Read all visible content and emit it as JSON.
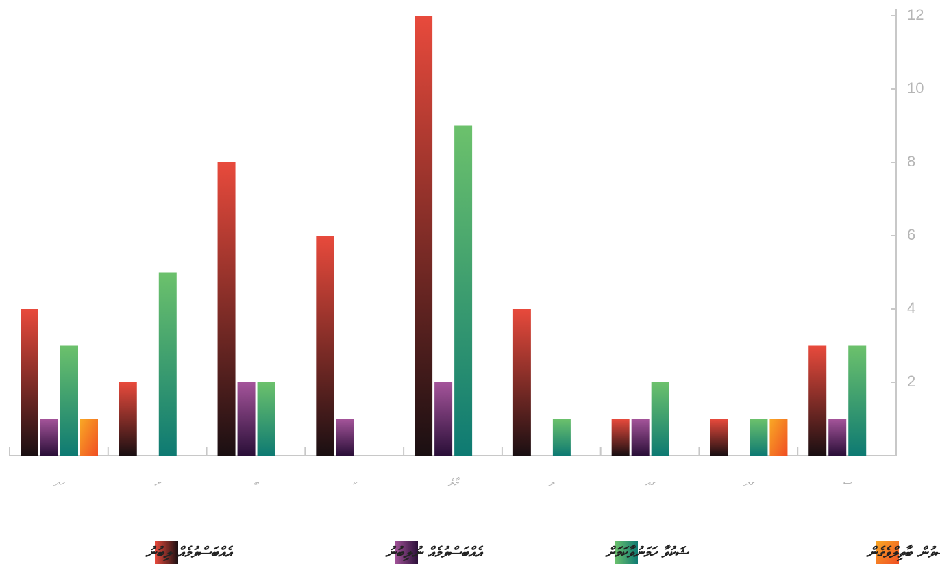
{
  "chart_data": {
    "type": "bar",
    "categories": [
      "ހދ",
      "ށ",
      "ބ",
      "ކ",
      "މާލެ",
      "ލ",
      "ގއ",
      "ގދ",
      "ސ"
    ],
    "series": [
      {
        "name": "އެއްބަސްވުމެއް ލިބުނު",
        "color": "#e84a3c",
        "values": [
          4,
          2,
          8,
          6,
          12,
          4,
          1,
          1,
          3
        ]
      },
      {
        "name": "އެއްބަސްވުމެއް ނުލިބުނު",
        "color": "#a4549a",
        "values": [
          1,
          null,
          2,
          1,
          2,
          null,
          1,
          null,
          1
        ]
      },
      {
        "name": "ޝަކުވާ ހަމަނުވާކަމަށް",
        "color": "#6cc16c",
        "values": [
          3,
          5,
          2,
          null,
          9,
          1,
          2,
          1,
          3
        ]
      },
      {
        "name": "އެއްބަސްވުން ބާތިލްވެގެން",
        "color": "#f9a825",
        "values": [
          1,
          null,
          null,
          null,
          null,
          null,
          null,
          1,
          null
        ]
      }
    ],
    "ylim": [
      0,
      12
    ],
    "yticks": [
      2,
      4,
      6,
      8,
      10,
      12
    ]
  }
}
